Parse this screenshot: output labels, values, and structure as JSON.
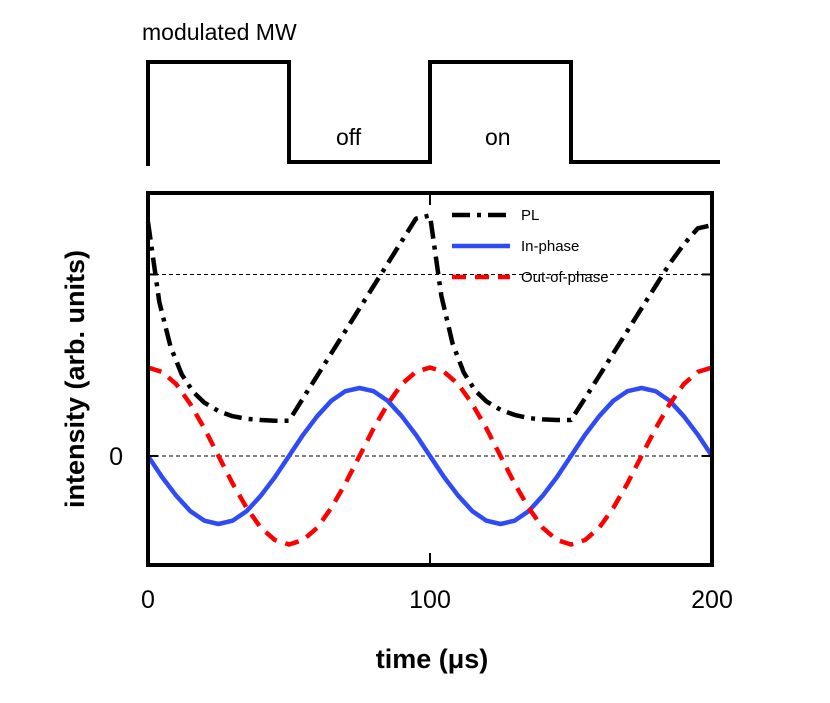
{
  "modulation": {
    "title": "modulated MW",
    "off_label": "off",
    "on_label": "on",
    "waveform": [
      {
        "t": 0,
        "state": "on"
      },
      {
        "t": 50,
        "state": "off"
      },
      {
        "t": 100,
        "state": "on"
      },
      {
        "t": 150,
        "state": "off"
      },
      {
        "t": 200,
        "state": "off"
      }
    ]
  },
  "chart_data": {
    "type": "line",
    "title": "",
    "xlabel": "time (μs)",
    "ylabel": "intensity (arb. units)",
    "xlim": [
      0,
      200
    ],
    "ylim": [
      -1.7,
      4.1
    ],
    "xticks": [
      0,
      100,
      200
    ],
    "xtick_labels": [
      "0",
      "100",
      "200"
    ],
    "yticks": [
      0
    ],
    "ytick_labels": [
      "0"
    ],
    "reference_lines": [
      0,
      2.83
    ],
    "legend_position": "top-right",
    "series": [
      {
        "name": "PL",
        "color": "#000000",
        "style": "dash-dot",
        "x": [
          0,
          4,
          8,
          12,
          16,
          20,
          25,
          30,
          35,
          40,
          45,
          50,
          55,
          60,
          65,
          70,
          75,
          80,
          85,
          90,
          95,
          100,
          104,
          108,
          112,
          116,
          120,
          125,
          130,
          135,
          140,
          145,
          150,
          155,
          160,
          165,
          170,
          175,
          180,
          185,
          190,
          195,
          200
        ],
        "values": [
          3.65,
          2.4,
          1.7,
          1.27,
          1.0,
          0.83,
          0.7,
          0.62,
          0.58,
          0.56,
          0.55,
          0.55,
          0.9,
          1.25,
          1.6,
          1.95,
          2.3,
          2.65,
          3.0,
          3.35,
          3.7,
          3.75,
          2.5,
          1.75,
          1.3,
          1.02,
          0.85,
          0.72,
          0.64,
          0.59,
          0.57,
          0.56,
          0.56,
          0.9,
          1.25,
          1.6,
          1.95,
          2.3,
          2.65,
          3.0,
          3.3,
          3.55,
          3.6
        ]
      },
      {
        "name": "In-phase",
        "color": "#2f4bf5",
        "style": "solid",
        "x": [
          0,
          5,
          10,
          15,
          20,
          25,
          30,
          35,
          40,
          45,
          50,
          55,
          60,
          65,
          70,
          75,
          80,
          85,
          90,
          95,
          100,
          105,
          110,
          115,
          120,
          125,
          130,
          135,
          140,
          145,
          150,
          155,
          160,
          165,
          170,
          175,
          180,
          185,
          190,
          195,
          200
        ],
        "values": [
          0.0,
          -0.33,
          -0.62,
          -0.86,
          -1.01,
          -1.06,
          -1.01,
          -0.86,
          -0.62,
          -0.33,
          0.0,
          0.33,
          0.62,
          0.86,
          1.01,
          1.06,
          1.01,
          0.86,
          0.62,
          0.33,
          0.0,
          -0.33,
          -0.62,
          -0.86,
          -1.01,
          -1.06,
          -1.01,
          -0.86,
          -0.62,
          -0.33,
          0.0,
          0.33,
          0.62,
          0.86,
          1.01,
          1.06,
          1.01,
          0.86,
          0.62,
          0.33,
          0.0
        ]
      },
      {
        "name": "Out-of-phase",
        "color": "#ff0000",
        "style": "dashed",
        "x": [
          0,
          5,
          10,
          15,
          20,
          25,
          30,
          35,
          40,
          45,
          50,
          55,
          60,
          65,
          70,
          75,
          80,
          85,
          90,
          95,
          100,
          105,
          110,
          115,
          120,
          125,
          130,
          135,
          140,
          145,
          150,
          155,
          160,
          165,
          170,
          175,
          180,
          185,
          190,
          195,
          200
        ],
        "values": [
          1.38,
          1.31,
          1.12,
          0.81,
          0.43,
          0.0,
          -0.43,
          -0.81,
          -1.12,
          -1.31,
          -1.38,
          -1.31,
          -1.12,
          -0.81,
          -0.43,
          0.0,
          0.43,
          0.81,
          1.12,
          1.31,
          1.38,
          1.31,
          1.12,
          0.81,
          0.43,
          0.0,
          -0.43,
          -0.81,
          -1.12,
          -1.31,
          -1.38,
          -1.31,
          -1.12,
          -0.81,
          -0.43,
          0.0,
          0.43,
          0.81,
          1.12,
          1.31,
          1.38
        ]
      }
    ]
  }
}
